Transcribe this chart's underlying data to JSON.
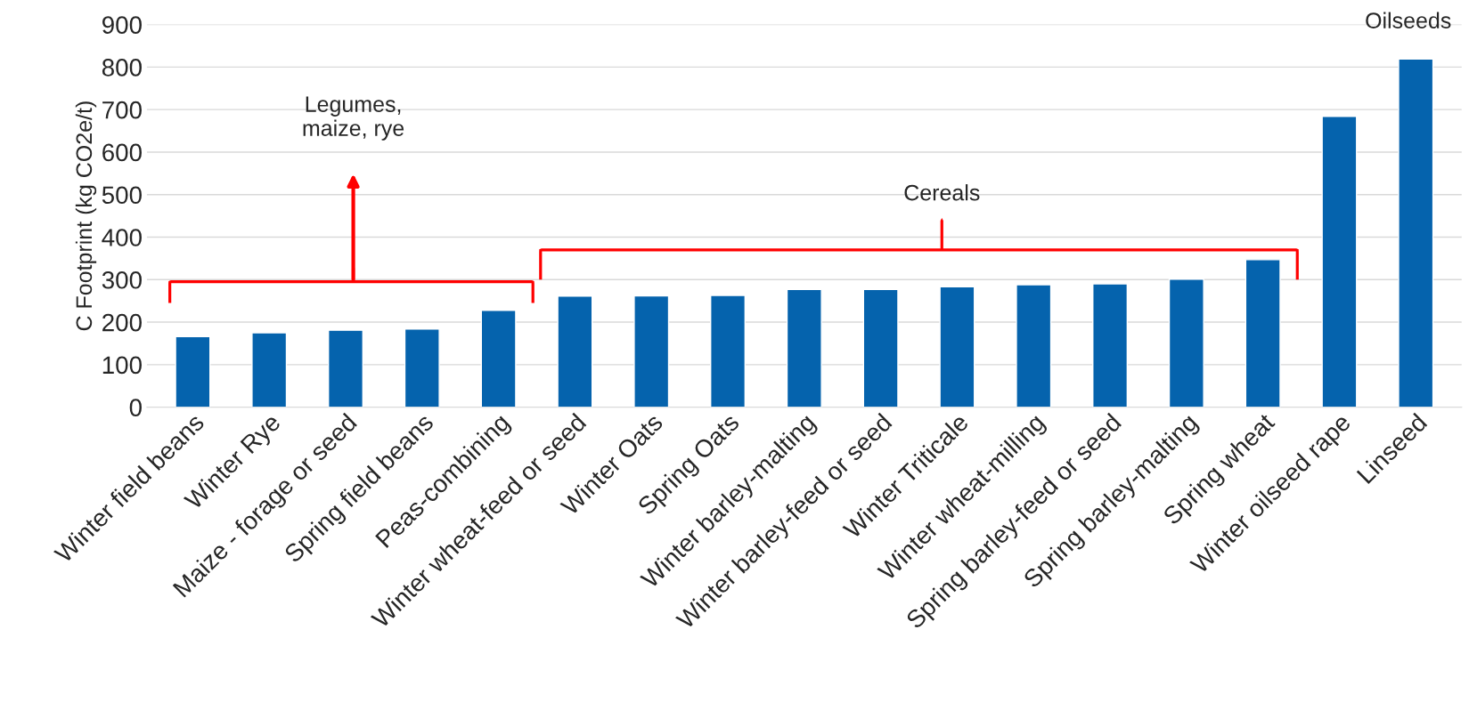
{
  "chart_data": {
    "type": "bar",
    "ylabel": "C Footprint (kg CO2e/t)",
    "categories": [
      "Winter field beans",
      "Winter Rye",
      "Maize - forage or seed",
      "Spring field beans",
      "Peas-combining",
      "Winter wheat-feed or seed",
      "Winter Oats",
      "Spring Oats",
      "Winter barley-malting",
      "Winter barley-feed or seed",
      "Winter Triticale",
      "Winter wheat-milling",
      "Spring barley-feed or seed",
      "Spring barley-malting",
      "Spring wheat",
      "Winter oilseed rape",
      "Linseed"
    ],
    "values": [
      166,
      175,
      181,
      184,
      228,
      261,
      262,
      263,
      277,
      277,
      283,
      288,
      290,
      301,
      347,
      684,
      819
    ],
    "color": "#0563ad",
    "ylim": [
      0,
      900
    ],
    "yticks": [
      0,
      100,
      200,
      300,
      400,
      500,
      600,
      700,
      800,
      900
    ],
    "grid": "y",
    "annotations": [
      "Legumes,\nmaize, rye",
      "Cereals",
      "Oilseeds"
    ]
  }
}
